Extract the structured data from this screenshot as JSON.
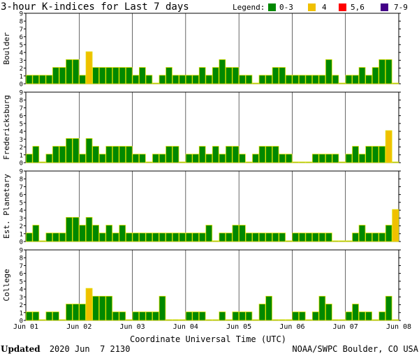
{
  "chart_data": {
    "type": "bar",
    "title": "3-hour K-indices for Last 7 days",
    "legend": {
      "label": "Legend:",
      "placement": "top-right",
      "entries": [
        {
          "range": "0-3",
          "color": "#008800"
        },
        {
          "range": "4",
          "color": "#f0c000"
        },
        {
          "range": "5,6",
          "color": "#ff0000"
        },
        {
          "range": "7-9",
          "color": "#440088"
        }
      ]
    },
    "bar_outline_color": "#e0e000",
    "ylim": [
      0,
      9
    ],
    "yticks": [
      "0",
      "1",
      "2",
      "3",
      "4",
      "5",
      "6",
      "7",
      "8",
      "9"
    ],
    "x_tick_labels": [
      "Jun 01",
      "Jun 02",
      "Jun 03",
      "Jun 04",
      "Jun 05",
      "Jun 06",
      "Jun 07",
      "Jun 08"
    ],
    "xlabel": "Coordinate Universal Time (UTC)",
    "series": [
      {
        "name": "Boulder",
        "values": [
          1,
          1,
          1,
          1,
          2,
          2,
          3,
          3,
          1,
          4,
          2,
          2,
          2,
          2,
          2,
          2,
          1,
          2,
          1,
          0,
          1,
          2,
          1,
          1,
          1,
          1,
          2,
          1,
          2,
          3,
          2,
          2,
          1,
          1,
          0,
          1,
          1,
          2,
          2,
          1,
          1,
          1,
          1,
          1,
          1,
          3,
          1,
          0,
          1,
          1,
          2,
          1,
          2,
          3,
          3,
          0
        ]
      },
      {
        "name": "Fredericksburg",
        "values": [
          1,
          2,
          0,
          1,
          2,
          2,
          3,
          3,
          1,
          3,
          2,
          1,
          2,
          2,
          2,
          2,
          1,
          1,
          0,
          1,
          1,
          2,
          2,
          0,
          1,
          1,
          2,
          1,
          2,
          1,
          2,
          2,
          1,
          0,
          1,
          2,
          2,
          2,
          1,
          1,
          0,
          0,
          0,
          1,
          1,
          1,
          1,
          0,
          1,
          2,
          1,
          2,
          2,
          2,
          4,
          0
        ]
      },
      {
        "name": "Est. Planetary",
        "values": [
          1,
          2,
          0,
          1,
          1,
          1,
          3,
          3,
          2,
          3,
          2,
          1,
          2,
          1,
          2,
          1,
          1,
          1,
          1,
          1,
          1,
          1,
          1,
          1,
          1,
          1,
          1,
          2,
          0,
          1,
          1,
          2,
          2,
          1,
          1,
          1,
          1,
          1,
          1,
          0,
          1,
          1,
          1,
          1,
          1,
          1,
          0,
          0,
          0,
          1,
          2,
          1,
          1,
          1,
          2,
          4
        ]
      },
      {
        "name": "College",
        "values": [
          1,
          1,
          0,
          1,
          1,
          0,
          2,
          2,
          2,
          4,
          3,
          3,
          3,
          1,
          1,
          0,
          1,
          1,
          1,
          1,
          3,
          0,
          0,
          0,
          1,
          1,
          1,
          0,
          0,
          1,
          0,
          1,
          1,
          1,
          0,
          2,
          3,
          0,
          0,
          0,
          1,
          1,
          0,
          1,
          3,
          2,
          0,
          0,
          1,
          2,
          1,
          1,
          0,
          1,
          3,
          0
        ]
      }
    ]
  },
  "footer": {
    "updated_label": "Updated",
    "updated_value": "2020 Jun  7 2130",
    "credit": "NOAA/SWPC Boulder, CO USA"
  }
}
